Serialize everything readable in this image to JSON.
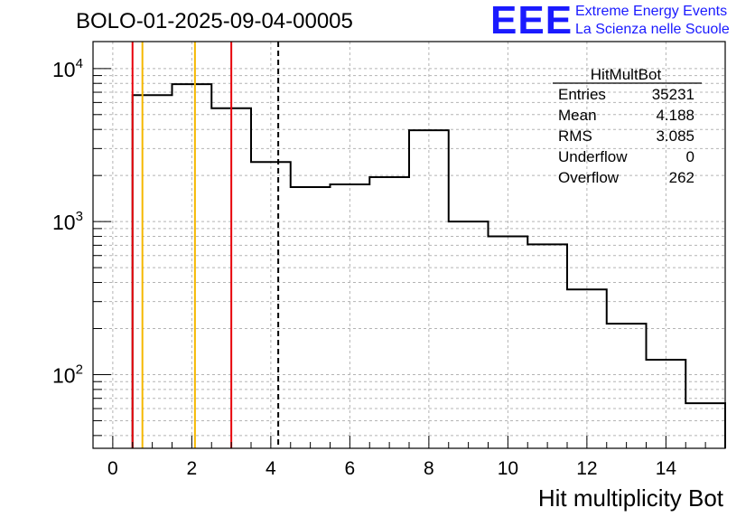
{
  "header": {
    "run_title": "BOLO-01-2025-09-04-00005",
    "logo_text": "EEE",
    "logo_line1": "Extreme Energy Events",
    "logo_line2": "La Scienza nelle Scuole"
  },
  "stats": {
    "name": "HitMultBot",
    "rows": [
      {
        "label": "Entries",
        "value": "35231"
      },
      {
        "label": "Mean",
        "value": "4.188"
      },
      {
        "label": "RMS",
        "value": "3.085"
      },
      {
        "label": "Underflow",
        "value": "0"
      },
      {
        "label": "Overflow",
        "value": "262"
      }
    ]
  },
  "chart_data": {
    "type": "histogram",
    "title": "BOLO-01-2025-09-04-00005",
    "xlabel": "Hit multiplicity Bot",
    "ylabel": "",
    "y_scale": "log",
    "xlim": [
      -0.5,
      15.5
    ],
    "ylim": [
      33,
      15000
    ],
    "grid": true,
    "x_ticks": [
      0,
      2,
      4,
      6,
      8,
      10,
      12,
      14
    ],
    "x_tick_labels": [
      "0",
      "2",
      "4",
      "6",
      "8",
      "10",
      "12",
      "14"
    ],
    "y_tick_labels": [
      {
        "value": 100,
        "base": "10",
        "exp": "2"
      },
      {
        "value": 1000,
        "base": "10",
        "exp": "3"
      },
      {
        "value": 10000,
        "base": "10",
        "exp": "4"
      }
    ],
    "bins": {
      "low_edges": [
        0.5,
        1.5,
        2.5,
        3.5,
        4.5,
        5.5,
        6.5,
        7.5,
        8.5,
        9.5,
        10.5,
        11.5,
        12.5,
        13.5,
        14.5
      ],
      "width": 1,
      "values": [
        6700,
        7900,
        5500,
        2450,
        1680,
        1750,
        1950,
        3950,
        1000,
        800,
        710,
        360,
        215,
        125,
        65
      ]
    },
    "vertical_lines": [
      {
        "x": 0.5,
        "color": "#e8000b",
        "style": "solid"
      },
      {
        "x": 0.75,
        "color": "#f5b800",
        "style": "solid"
      },
      {
        "x": 2.08,
        "color": "#f5b800",
        "style": "solid"
      },
      {
        "x": 3.0,
        "color": "#e8000b",
        "style": "solid"
      },
      {
        "x": 4.188,
        "color": "#000000",
        "style": "dashed"
      }
    ]
  }
}
